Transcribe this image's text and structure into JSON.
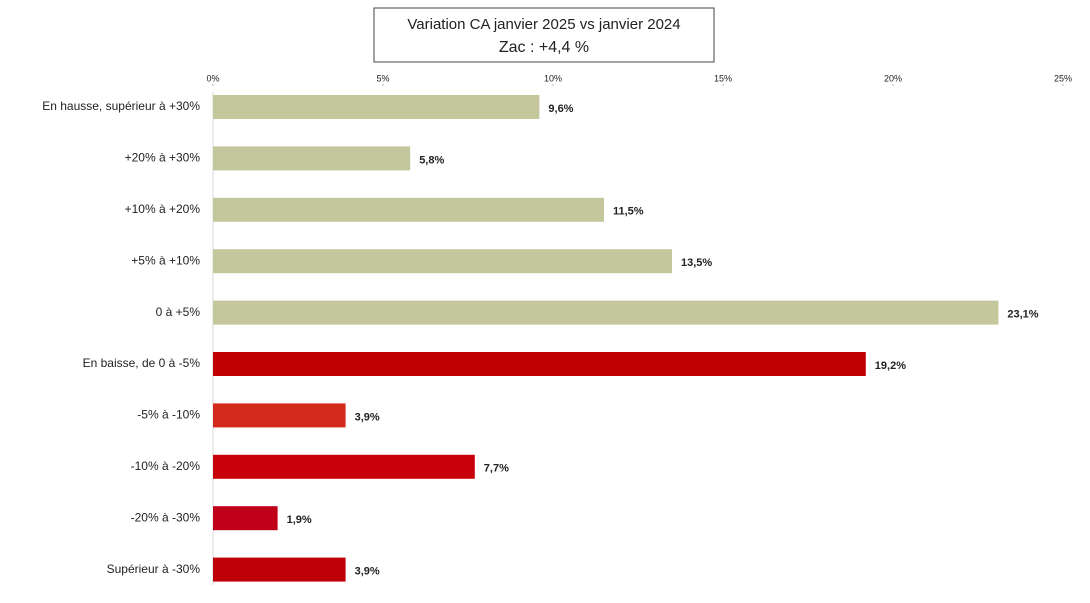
{
  "chart_data": {
    "type": "hbar",
    "title": "Variation CA janvier 2025 vs janvier 2024",
    "subtitle": "Zac : +4,4 %",
    "categories": [
      "En hausse, supérieur à +30%",
      "+20% à +30%",
      "+10% à +20%",
      "+5% à +10%",
      "0 à +5%",
      "En baisse, de 0 à -5%",
      "-5% à -10%",
      "-10% à -20%",
      "-20% à -30%",
      "Supérieur à -30%"
    ],
    "values": [
      9.6,
      5.8,
      11.5,
      13.5,
      23.1,
      19.2,
      3.9,
      7.7,
      1.9,
      3.9
    ],
    "value_labels": [
      "9,6%",
      "5,8%",
      "11,5%",
      "13,5%",
      "23,1%",
      "19,2%",
      "3,9%",
      "7,7%",
      "1,9%",
      "3,9%"
    ],
    "colors": [
      "#c4c79c",
      "#c4c79c",
      "#c4c79c",
      "#c4c79c",
      "#c4c79c",
      "#c00000",
      "#d42a1e",
      "#c8000c",
      "#c00018",
      "#c00008"
    ],
    "xlim": [
      0,
      25
    ],
    "xticks": [
      {
        "value": 0,
        "label": "0%"
      },
      {
        "value": 5,
        "label": "5%"
      },
      {
        "value": 10,
        "label": "10%"
      },
      {
        "value": 15,
        "label": "15%"
      },
      {
        "value": 20,
        "label": "20%"
      },
      {
        "value": 25,
        "label": "25%"
      }
    ]
  }
}
